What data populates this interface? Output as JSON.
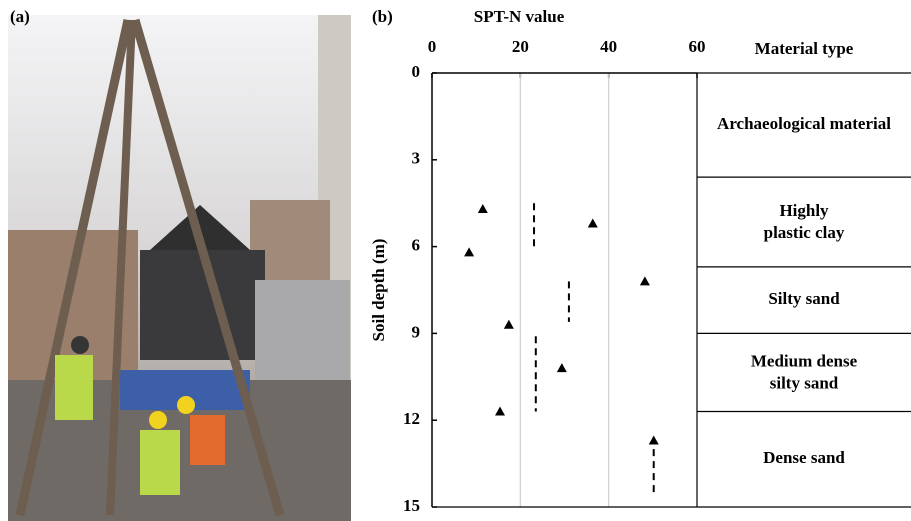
{
  "panel_labels": [
    "(a)",
    "(b)"
  ],
  "chart_data": {
    "type": "scatter",
    "xlabel": "SPT-N value",
    "ylabel": "Soil depth (m)",
    "layer_header": "Material type",
    "xlim": [
      0,
      60
    ],
    "xticks": [
      0,
      20,
      40,
      60
    ],
    "ylim": [
      0,
      15
    ],
    "yticks": [
      0,
      3,
      6,
      9,
      12,
      15
    ],
    "y_inverted": true,
    "grid": true,
    "color": "#000000",
    "x": [
      11.5,
      36.4,
      8.4,
      48.2,
      17.4,
      29.4,
      15.4,
      50.2
    ],
    "y": [
      4.7,
      5.2,
      6.2,
      7.2,
      8.7,
      10.2,
      11.7,
      12.7
    ],
    "dashed_lines": [
      {
        "value": 23.1,
        "depth": [
          4.5,
          6.0
        ]
      },
      {
        "value": 31.0,
        "depth": [
          7.2,
          8.6
        ]
      },
      {
        "value": 23.5,
        "depth": [
          9.1,
          11.7
        ]
      },
      {
        "value": 50.2,
        "depth": [
          13.0,
          14.6
        ]
      }
    ],
    "layers": [
      {
        "label": "Archaeological material",
        "top": 0,
        "bottom": 3.6
      },
      {
        "label": "Highly plastic clay",
        "top": 3.6,
        "bottom": 6.7
      },
      {
        "label": "Silty sand",
        "top": 6.7,
        "bottom": 9.0
      },
      {
        "label": "Medium dense silty sand",
        "top": 9.0,
        "bottom": 11.7
      },
      {
        "label": "Dense sand",
        "top": 11.7,
        "bottom": 15
      }
    ]
  }
}
